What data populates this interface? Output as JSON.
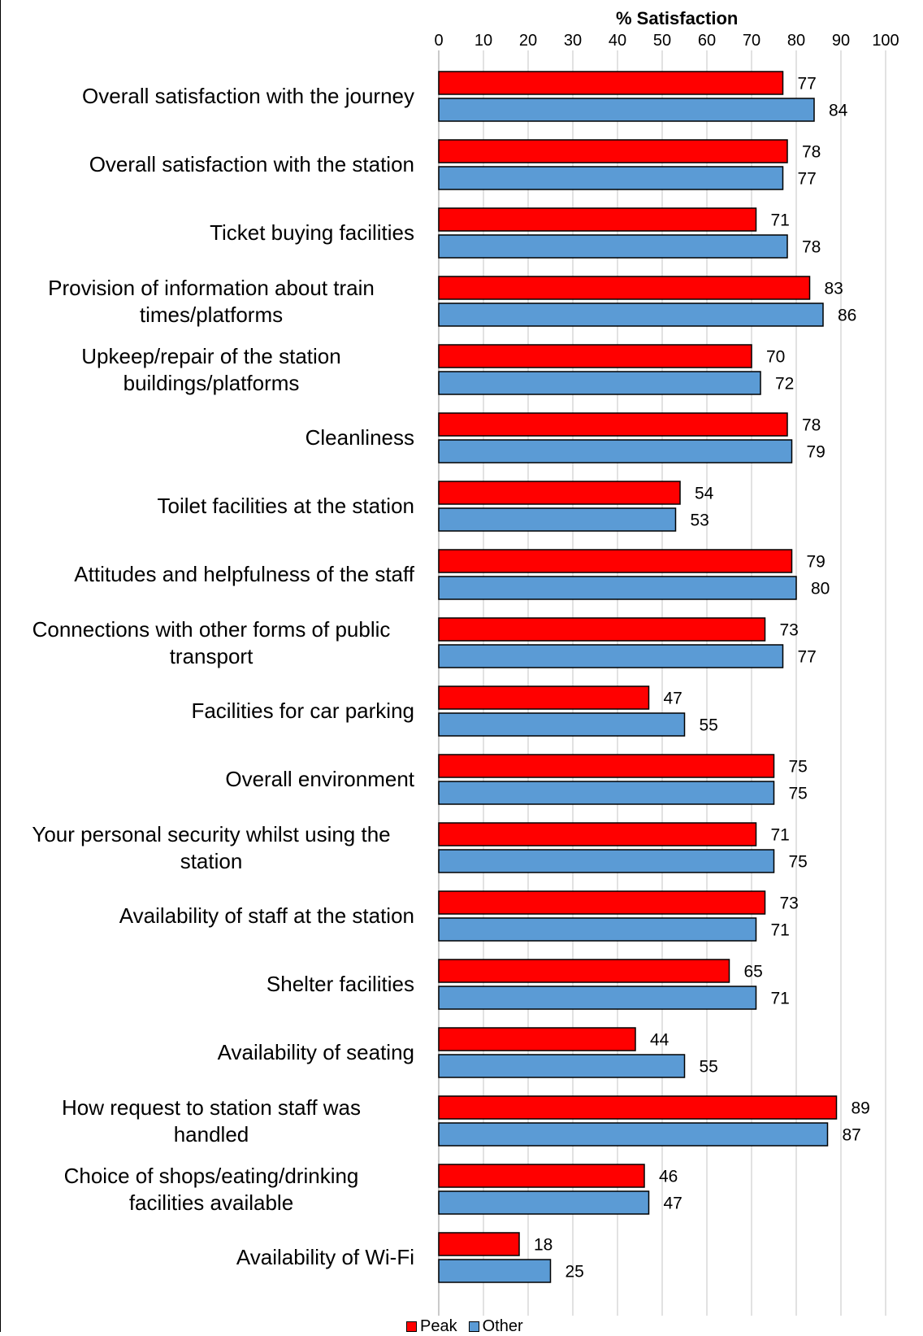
{
  "chart_data": {
    "type": "bar",
    "orientation": "horizontal",
    "title": "",
    "xlabel": "% Satisfaction",
    "ylabel": "",
    "xlim": [
      0,
      100
    ],
    "x_ticks": [
      0,
      10,
      20,
      30,
      40,
      50,
      60,
      70,
      80,
      90,
      100
    ],
    "grid": "vertical",
    "legend_position": "bottom",
    "categories": [
      "Overall satisfaction with the journey",
      "Overall satisfaction with the station",
      "Ticket buying facilities",
      "Provision of information about train times/platforms",
      "Upkeep/repair of the station buildings/platforms",
      "Cleanliness",
      "Toilet facilities at the station",
      "Attitudes and helpfulness of the staff",
      "Connections with other forms of public transport",
      "Facilities for car parking",
      "Overall environment",
      "Your personal security whilst using the station",
      "Availability of staff at the station",
      "Shelter facilities",
      "Availability of seating",
      "How request to station staff was handled",
      "Choice of shops/eating/drinking facilities available",
      "Availability of Wi-Fi"
    ],
    "category_lines": [
      [
        "Overall satisfaction with the journey"
      ],
      [
        "Overall satisfaction with the station"
      ],
      [
        "Ticket buying facilities"
      ],
      [
        "Provision of information about train",
        "times/platforms"
      ],
      [
        "Upkeep/repair of the station",
        "buildings/platforms"
      ],
      [
        "Cleanliness"
      ],
      [
        "Toilet facilities at the station"
      ],
      [
        "Attitudes and helpfulness of the staff"
      ],
      [
        "Connections with other forms of public",
        "transport"
      ],
      [
        "Facilities for car parking"
      ],
      [
        "Overall environment"
      ],
      [
        "Your personal security whilst using the",
        "station"
      ],
      [
        "Availability of staff at the station"
      ],
      [
        "Shelter facilities"
      ],
      [
        "Availability of seating"
      ],
      [
        "How request to station staff was",
        "handled"
      ],
      [
        "Choice of shops/eating/drinking",
        "facilities available"
      ],
      [
        "Availability of Wi-Fi"
      ]
    ],
    "series": [
      {
        "name": "Peak",
        "color": "#ff0000",
        "values": [
          77,
          78,
          71,
          83,
          70,
          78,
          54,
          79,
          73,
          47,
          75,
          71,
          73,
          65,
          44,
          89,
          46,
          18
        ]
      },
      {
        "name": "Other",
        "color": "#5b9bd5",
        "values": [
          84,
          77,
          78,
          86,
          72,
          79,
          53,
          80,
          77,
          55,
          75,
          75,
          71,
          71,
          55,
          87,
          47,
          25
        ]
      }
    ]
  }
}
